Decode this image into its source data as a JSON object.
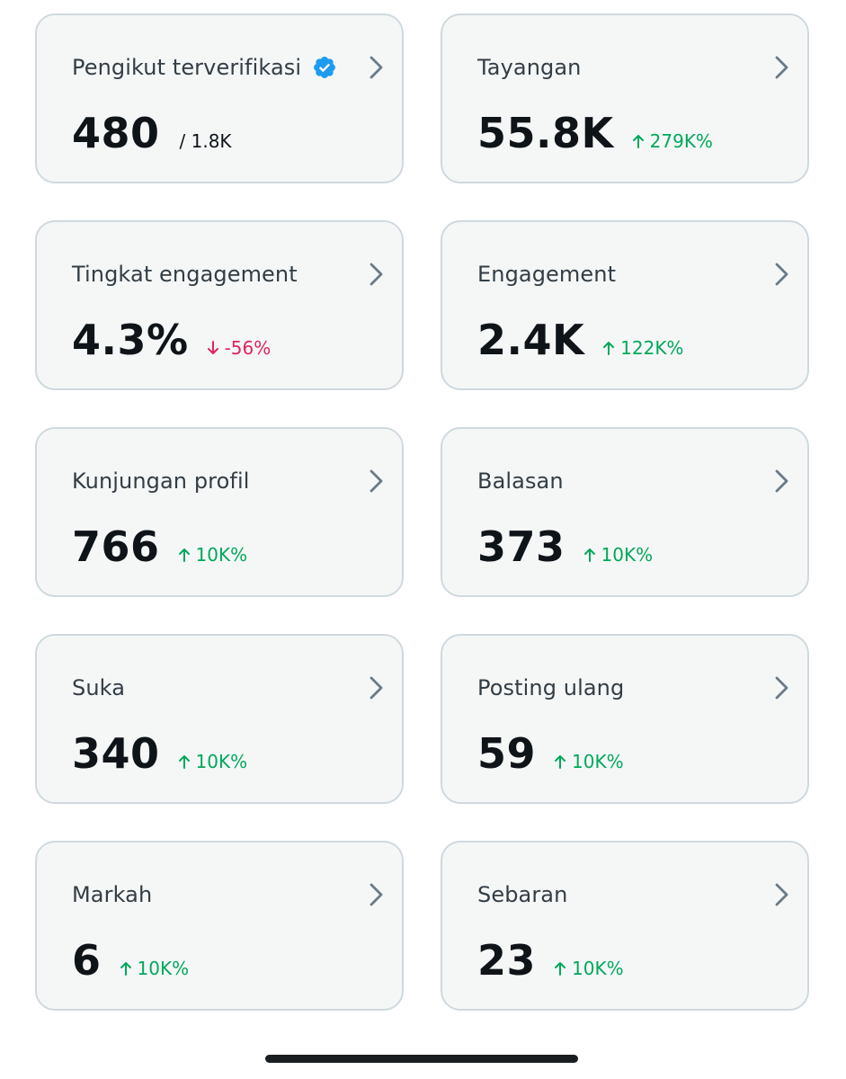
{
  "colors": {
    "card_bg": "#f5f7f7",
    "card_border": "#cfd9de",
    "up": "#00a85a",
    "down": "#e0245e",
    "verified": "#1d9bf0"
  },
  "cards": [
    {
      "title": "Pengikut terverifikasi",
      "value": "480",
      "change": "/ 1.8K",
      "direction": "neutral",
      "verified": true
    },
    {
      "title": "Tayangan",
      "value": "55.8K",
      "change": "279K%",
      "direction": "up"
    },
    {
      "title": "Tingkat engagement",
      "value": "4.3%",
      "change": "-56%",
      "direction": "down"
    },
    {
      "title": "Engagement",
      "value": "2.4K",
      "change": "122K%",
      "direction": "up"
    },
    {
      "title": "Kunjungan profil",
      "value": "766",
      "change": "10K%",
      "direction": "up"
    },
    {
      "title": "Balasan",
      "value": "373",
      "change": "10K%",
      "direction": "up"
    },
    {
      "title": "Suka",
      "value": "340",
      "change": "10K%",
      "direction": "up"
    },
    {
      "title": "Posting ulang",
      "value": "59",
      "change": "10K%",
      "direction": "up"
    },
    {
      "title": "Markah",
      "value": "6",
      "change": "10K%",
      "direction": "up"
    },
    {
      "title": "Sebaran",
      "value": "23",
      "change": "10K%",
      "direction": "up"
    }
  ],
  "icons": {
    "chevron": "chevron-right-icon",
    "verified": "verified-badge-icon",
    "up": "arrow-up-icon",
    "down": "arrow-down-icon"
  }
}
